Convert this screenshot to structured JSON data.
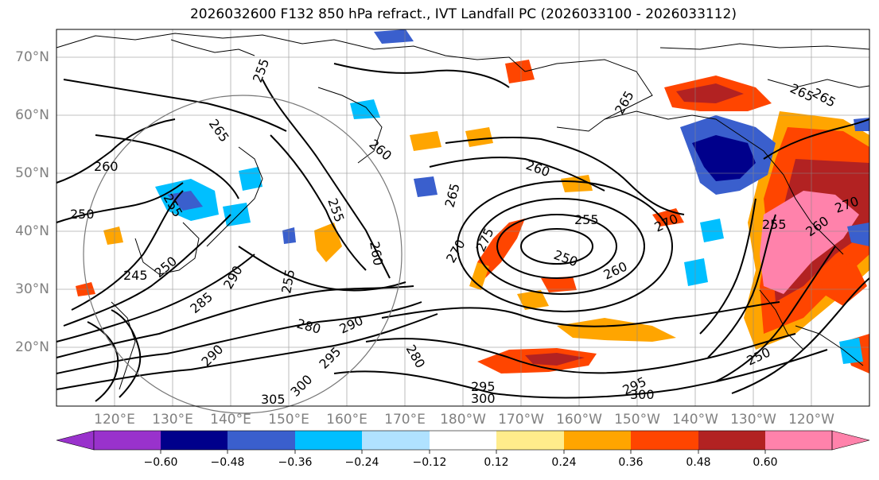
{
  "title": "2026032600 F132 850 hPa refract., IVT Landfall PC (2026033100 - 2026033112)",
  "lat_labels": [
    "70°N",
    "60°N",
    "50°N",
    "40°N",
    "30°N",
    "20°N"
  ],
  "lon_labels": [
    "120°E",
    "130°E",
    "140°E",
    "150°E",
    "160°E",
    "170°E",
    "180°W",
    "170°W",
    "160°W",
    "150°W",
    "140°W",
    "130°W",
    "120°W"
  ],
  "colorbar": {
    "ticks": [
      "−0.60",
      "−0.48",
      "−0.36",
      "−0.24",
      "−0.12",
      "0.12",
      "0.24",
      "0.36",
      "0.48",
      "0.60"
    ],
    "colors": [
      "#9932cc",
      "#00008b",
      "#3a5fcd",
      "#00bfff",
      "#b0e2ff",
      "#ffffff",
      "#ffec8b",
      "#ffa500",
      "#ff4500",
      "#b22222",
      "#ff82ab",
      "#ff82ab"
    ]
  },
  "contour_labels": [
    "255",
    "265",
    "260",
    "250",
    "255",
    "245",
    "250",
    "290",
    "255",
    "260",
    "265",
    "255",
    "270",
    "260",
    "275",
    "255",
    "250",
    "265",
    "270",
    "260",
    "265",
    "255",
    "260",
    "280",
    "285",
    "290",
    "295",
    "300",
    "305",
    "280",
    "295",
    "300",
    "295",
    "300",
    "250",
    "290",
    "270",
    "260",
    "265"
  ]
}
